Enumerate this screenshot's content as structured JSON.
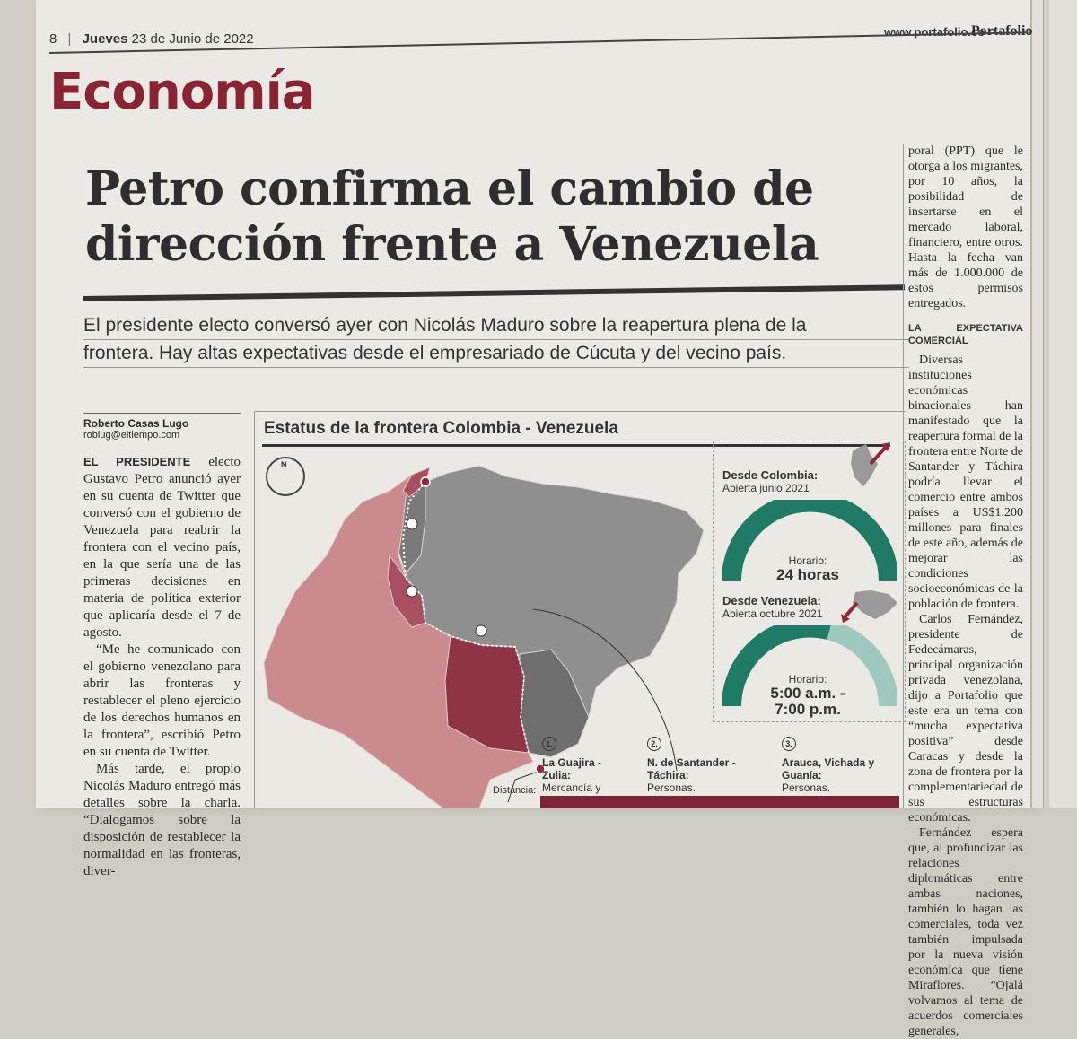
{
  "header": {
    "page_number": "8",
    "day": "Jueves",
    "date": "23 de Junio de 2022",
    "website": "www.portafolio.co",
    "brand": "Portafolio"
  },
  "section": "Economía",
  "article": {
    "headline_line1": "Petro confirma el cambio de",
    "headline_line2": "dirección frente a Venezuela",
    "deck_line1": "El presidente electo conversó ayer con Nicolás Maduro sobre la reapertura plena de la",
    "deck_line2": "frontera. Hay altas expectativas desde el empresariado de Cúcuta y del vecino país.",
    "author": "Roberto Casas Lugo",
    "email": "roblug@eltiempo.com",
    "lead_in": "EL PRESIDENTE",
    "para1": "electo Gustavo Petro anunció ayer en su cuenta de Twitter que conversó con el gobierno de Venezuela para reabrir la frontera con el vecino país, en la que sería una de las primeras decisiones en materia de política exterior que aplicaría desde el 7 de agosto.",
    "para2": "“Me he comunicado con el gobierno venezolano para abrir las fronteras y restablecer el pleno ejercicio de los derechos humanos en la frontera”, escribió Petro en su cuenta de Twitter.",
    "para3": "Más tarde, el propio Nicolás Maduro entregó más detalles sobre la charla. “Dialogamos sobre la disposición de restablecer la normalidad en las fronteras, diver-",
    "right_para1": "poral (PPT) que le otorga a los migrantes, por 10 años, la posibilidad de insertarse en el mercado laboral, financiero, entre otros. Hasta la fecha van más de 1.000.000 de estos permisos entregados.",
    "subhead": "LA EXPECTATIVA COMERCIAL",
    "right_para2": "Diversas instituciones económicas binacionales han manifestado que la reapertura formal de la frontera entre Norte de Santander y Táchira podría llevar el comercio entre ambos países a US$1.200 millones para finales de este año, además de mejorar las condiciones socioeconómicas de la población de frontera.",
    "right_para3": "Carlos Fernández, presidente de Fedecámaras, principal organización privada venezolana, dijo a Portafolio que este era un tema con “mucha expectativa positiva” desde Caracas y desde la zona de frontera por la complementariedad de sus estructuras económicas.",
    "right_para4": "Fernández espera que, al profundizar las relaciones diplomáticas entre ambas naciones, también lo hagan las comerciales, toda vez también impulsada por la nueva visión económica que tiene Miraflores. “Ojalá volvamos al tema de acuerdos comerciales generales,"
  },
  "graphic": {
    "title": "Estatus de la frontera Colombia - Venezuela",
    "compass_label": "N",
    "from_colombia": {
      "heading": "Desde Colombia:",
      "status": "Abierta junio 2021",
      "hours_label": "Horario:",
      "hours_value": "24 horas",
      "open_fraction": 1.0
    },
    "from_venezuela": {
      "heading": "Desde Venezuela:",
      "status": "Abierta octubre 2021",
      "hours_label": "Horario:",
      "hours_value_line1": "5:00 a.m. -",
      "hours_value_line2": "7:00 p.m.",
      "open_fraction": 0.58
    },
    "crossings": [
      {
        "num": "1.",
        "name": "La Guajira - Zulia:",
        "desc": "Mercancía y personas."
      },
      {
        "num": "2.",
        "name": "N. de Santander - Táchira:",
        "desc": "Personas."
      },
      {
        "num": "3.",
        "name": "Arauca, Vichada y Guanía:",
        "desc": "Personas."
      }
    ],
    "distance_label": "Distancia:",
    "colors": {
      "colombia": "#c98b8e",
      "colombia_border": "#8e3444",
      "venezuela": "#8f8f8f",
      "venezuela_dark": "#6e6e6e",
      "gauge_primary": "#1f7a66",
      "gauge_secondary": "#9fc9be",
      "arrow": "#8e2a3a"
    }
  }
}
